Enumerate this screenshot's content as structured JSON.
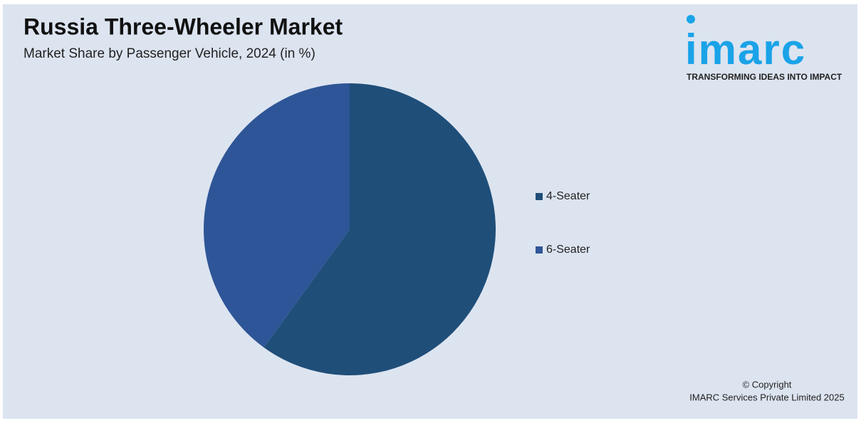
{
  "chart_data": {
    "type": "pie",
    "title": "Russia Three-Wheeler Market",
    "subtitle": "Market Share by Passenger Vehicle, 2024 (in %)",
    "categories": [
      "4-Seater",
      "6-Seater"
    ],
    "values": [
      60,
      40
    ],
    "colors": [
      "#1f4e79",
      "#2e5597"
    ],
    "legend": "right"
  },
  "logo": {
    "name": "imarc",
    "tagline": "TRANSFORMING IDEAS INTO IMPACT"
  },
  "footer": {
    "line1": "© Copyright",
    "line2": "IMARC Services Private Limited 2025"
  }
}
